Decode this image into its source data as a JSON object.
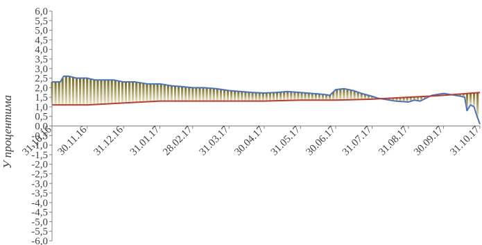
{
  "chart_data": {
    "type": "area",
    "title": "",
    "xlabel": "",
    "ylabel": "У процентима",
    "ylim": [
      -6.0,
      6.0
    ],
    "ytick_step": 0.5,
    "x_start": "31.10.16",
    "x_end": "31.10.17",
    "xtick_labels": [
      "31.10.16",
      "30.11.16",
      "31.12.16",
      "31.01.17",
      "28.02.17",
      "31.03.17",
      "30.04.17",
      "31.05.17",
      "30.06.17",
      "31.07.17",
      "31.08.17",
      "30.09.17",
      "31.10.17"
    ],
    "grid": false,
    "legend": "none",
    "series": [
      {
        "color": "#4472c4",
        "points": [
          [
            "31.10.16",
            2.3
          ],
          [
            "07.11.16",
            2.3
          ],
          [
            "10.11.16",
            2.6
          ],
          [
            "14.11.16",
            2.6
          ],
          [
            "21.11.16",
            2.5
          ],
          [
            "30.11.16",
            2.5
          ],
          [
            "07.12.16",
            2.4
          ],
          [
            "15.12.16",
            2.4
          ],
          [
            "23.12.16",
            2.4
          ],
          [
            "31.12.16",
            2.3
          ],
          [
            "10.01.17",
            2.3
          ],
          [
            "20.01.17",
            2.2
          ],
          [
            "31.01.17",
            2.2
          ],
          [
            "10.02.17",
            2.1
          ],
          [
            "20.02.17",
            2.05
          ],
          [
            "28.02.17",
            2.0
          ],
          [
            "10.03.17",
            2.0
          ],
          [
            "20.03.17",
            1.95
          ],
          [
            "31.03.17",
            1.85
          ],
          [
            "10.04.17",
            1.8
          ],
          [
            "20.04.17",
            1.75
          ],
          [
            "30.04.17",
            1.72
          ],
          [
            "10.05.17",
            1.75
          ],
          [
            "20.05.17",
            1.8
          ],
          [
            "31.05.17",
            1.75
          ],
          [
            "10.06.17",
            1.7
          ],
          [
            "20.06.17",
            1.65
          ],
          [
            "25.06.17",
            1.6
          ],
          [
            "30.06.17",
            1.9
          ],
          [
            "07.07.17",
            1.95
          ],
          [
            "15.07.17",
            1.85
          ],
          [
            "22.07.17",
            1.7
          ],
          [
            "31.07.17",
            1.55
          ],
          [
            "05.08.17",
            1.45
          ],
          [
            "10.08.17",
            1.4
          ],
          [
            "20.08.17",
            1.3
          ],
          [
            "31.08.17",
            1.25
          ],
          [
            "05.09.17",
            1.35
          ],
          [
            "10.09.17",
            1.3
          ],
          [
            "15.09.17",
            1.45
          ],
          [
            "20.09.17",
            1.6
          ],
          [
            "30.09.17",
            1.7
          ],
          [
            "05.10.17",
            1.65
          ],
          [
            "10.10.17",
            1.6
          ],
          [
            "15.10.17",
            1.55
          ],
          [
            "18.10.17",
            1.5
          ],
          [
            "20.10.17",
            0.8
          ],
          [
            "23.10.17",
            1.1
          ],
          [
            "26.10.17",
            1.0
          ],
          [
            "28.10.17",
            0.6
          ],
          [
            "31.10.17",
            0.1
          ]
        ]
      },
      {
        "color": "#c0392b",
        "points": [
          [
            "31.10.16",
            1.1
          ],
          [
            "30.11.16",
            1.1
          ],
          [
            "31.12.16",
            1.2
          ],
          [
            "31.01.17",
            1.3
          ],
          [
            "28.02.17",
            1.3
          ],
          [
            "31.03.17",
            1.3
          ],
          [
            "30.04.17",
            1.3
          ],
          [
            "31.05.17",
            1.35
          ],
          [
            "30.06.17",
            1.35
          ],
          [
            "31.07.17",
            1.4
          ],
          [
            "15.08.17",
            1.45
          ],
          [
            "31.08.17",
            1.5
          ],
          [
            "30.09.17",
            1.6
          ],
          [
            "31.10.17",
            1.75
          ]
        ]
      }
    ],
    "band": {
      "between_series": [
        0,
        1
      ],
      "fill_top": "#7a6a1e",
      "fill_bottom": "#e8e2bf"
    }
  }
}
